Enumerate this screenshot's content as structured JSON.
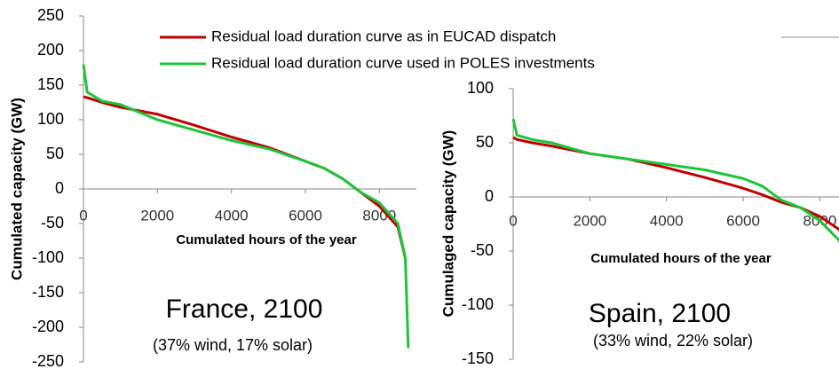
{
  "chart_data": [
    {
      "type": "line",
      "ylabel": "Cumulated capacity (GW)",
      "xlabel": "Cumulated hours of the year",
      "annotations": [
        "France, 2100",
        "(37% wind, 17% solar)"
      ],
      "x": [
        0,
        100,
        500,
        1000,
        2000,
        3000,
        4000,
        5000,
        6000,
        6500,
        7000,
        7500,
        8000,
        8500,
        8700,
        8780
      ],
      "series": [
        {
          "name": "Residual load duration curve as in EUCAD dispatch",
          "color": "#c00000",
          "values": [
            133,
            132,
            125,
            118,
            108,
            92,
            75,
            60,
            40,
            30,
            15,
            -5,
            -25,
            -55,
            -100,
            null
          ]
        },
        {
          "name": "Residual load duration curve used in POLES investments",
          "color": "#1ec43c",
          "values": [
            180,
            140,
            127,
            122,
            100,
            85,
            70,
            58,
            40,
            30,
            15,
            -5,
            -20,
            -50,
            -100,
            -230
          ]
        }
      ],
      "xlim": [
        0,
        9000
      ],
      "xticks": [
        0,
        2000,
        4000,
        6000,
        8000
      ],
      "ylim": [
        -250,
        250
      ],
      "yticks": [
        -250,
        -200,
        -150,
        -100,
        -50,
        0,
        50,
        100,
        150,
        200,
        250
      ]
    },
    {
      "type": "line",
      "ylabel": "Cumulaged capacity (GW)",
      "xlabel": "Cumulated hours of the year",
      "annotations": [
        "Spain, 2100",
        "(33% wind, 22% solar)"
      ],
      "x": [
        0,
        100,
        500,
        1000,
        2000,
        3000,
        4000,
        5000,
        6000,
        6500,
        7000,
        7500,
        8000,
        8500,
        8760
      ],
      "series": [
        {
          "color": "#c00000",
          "values": [
            55,
            53,
            50,
            47,
            40,
            35,
            27,
            18,
            8,
            2,
            -5,
            -10,
            -18,
            -30,
            -45
          ]
        },
        {
          "color": "#1ec43c",
          "values": [
            72,
            57,
            53,
            50,
            40,
            35,
            30,
            25,
            17,
            10,
            -3,
            -10,
            -22,
            -40,
            -60
          ]
        }
      ],
      "xlim": [
        0,
        8500
      ],
      "xticks": [
        0,
        2000,
        4000,
        6000,
        8000
      ],
      "ylim": [
        -150,
        100
      ],
      "yticks": [
        -150,
        -100,
        -50,
        0,
        50,
        100
      ]
    }
  ]
}
